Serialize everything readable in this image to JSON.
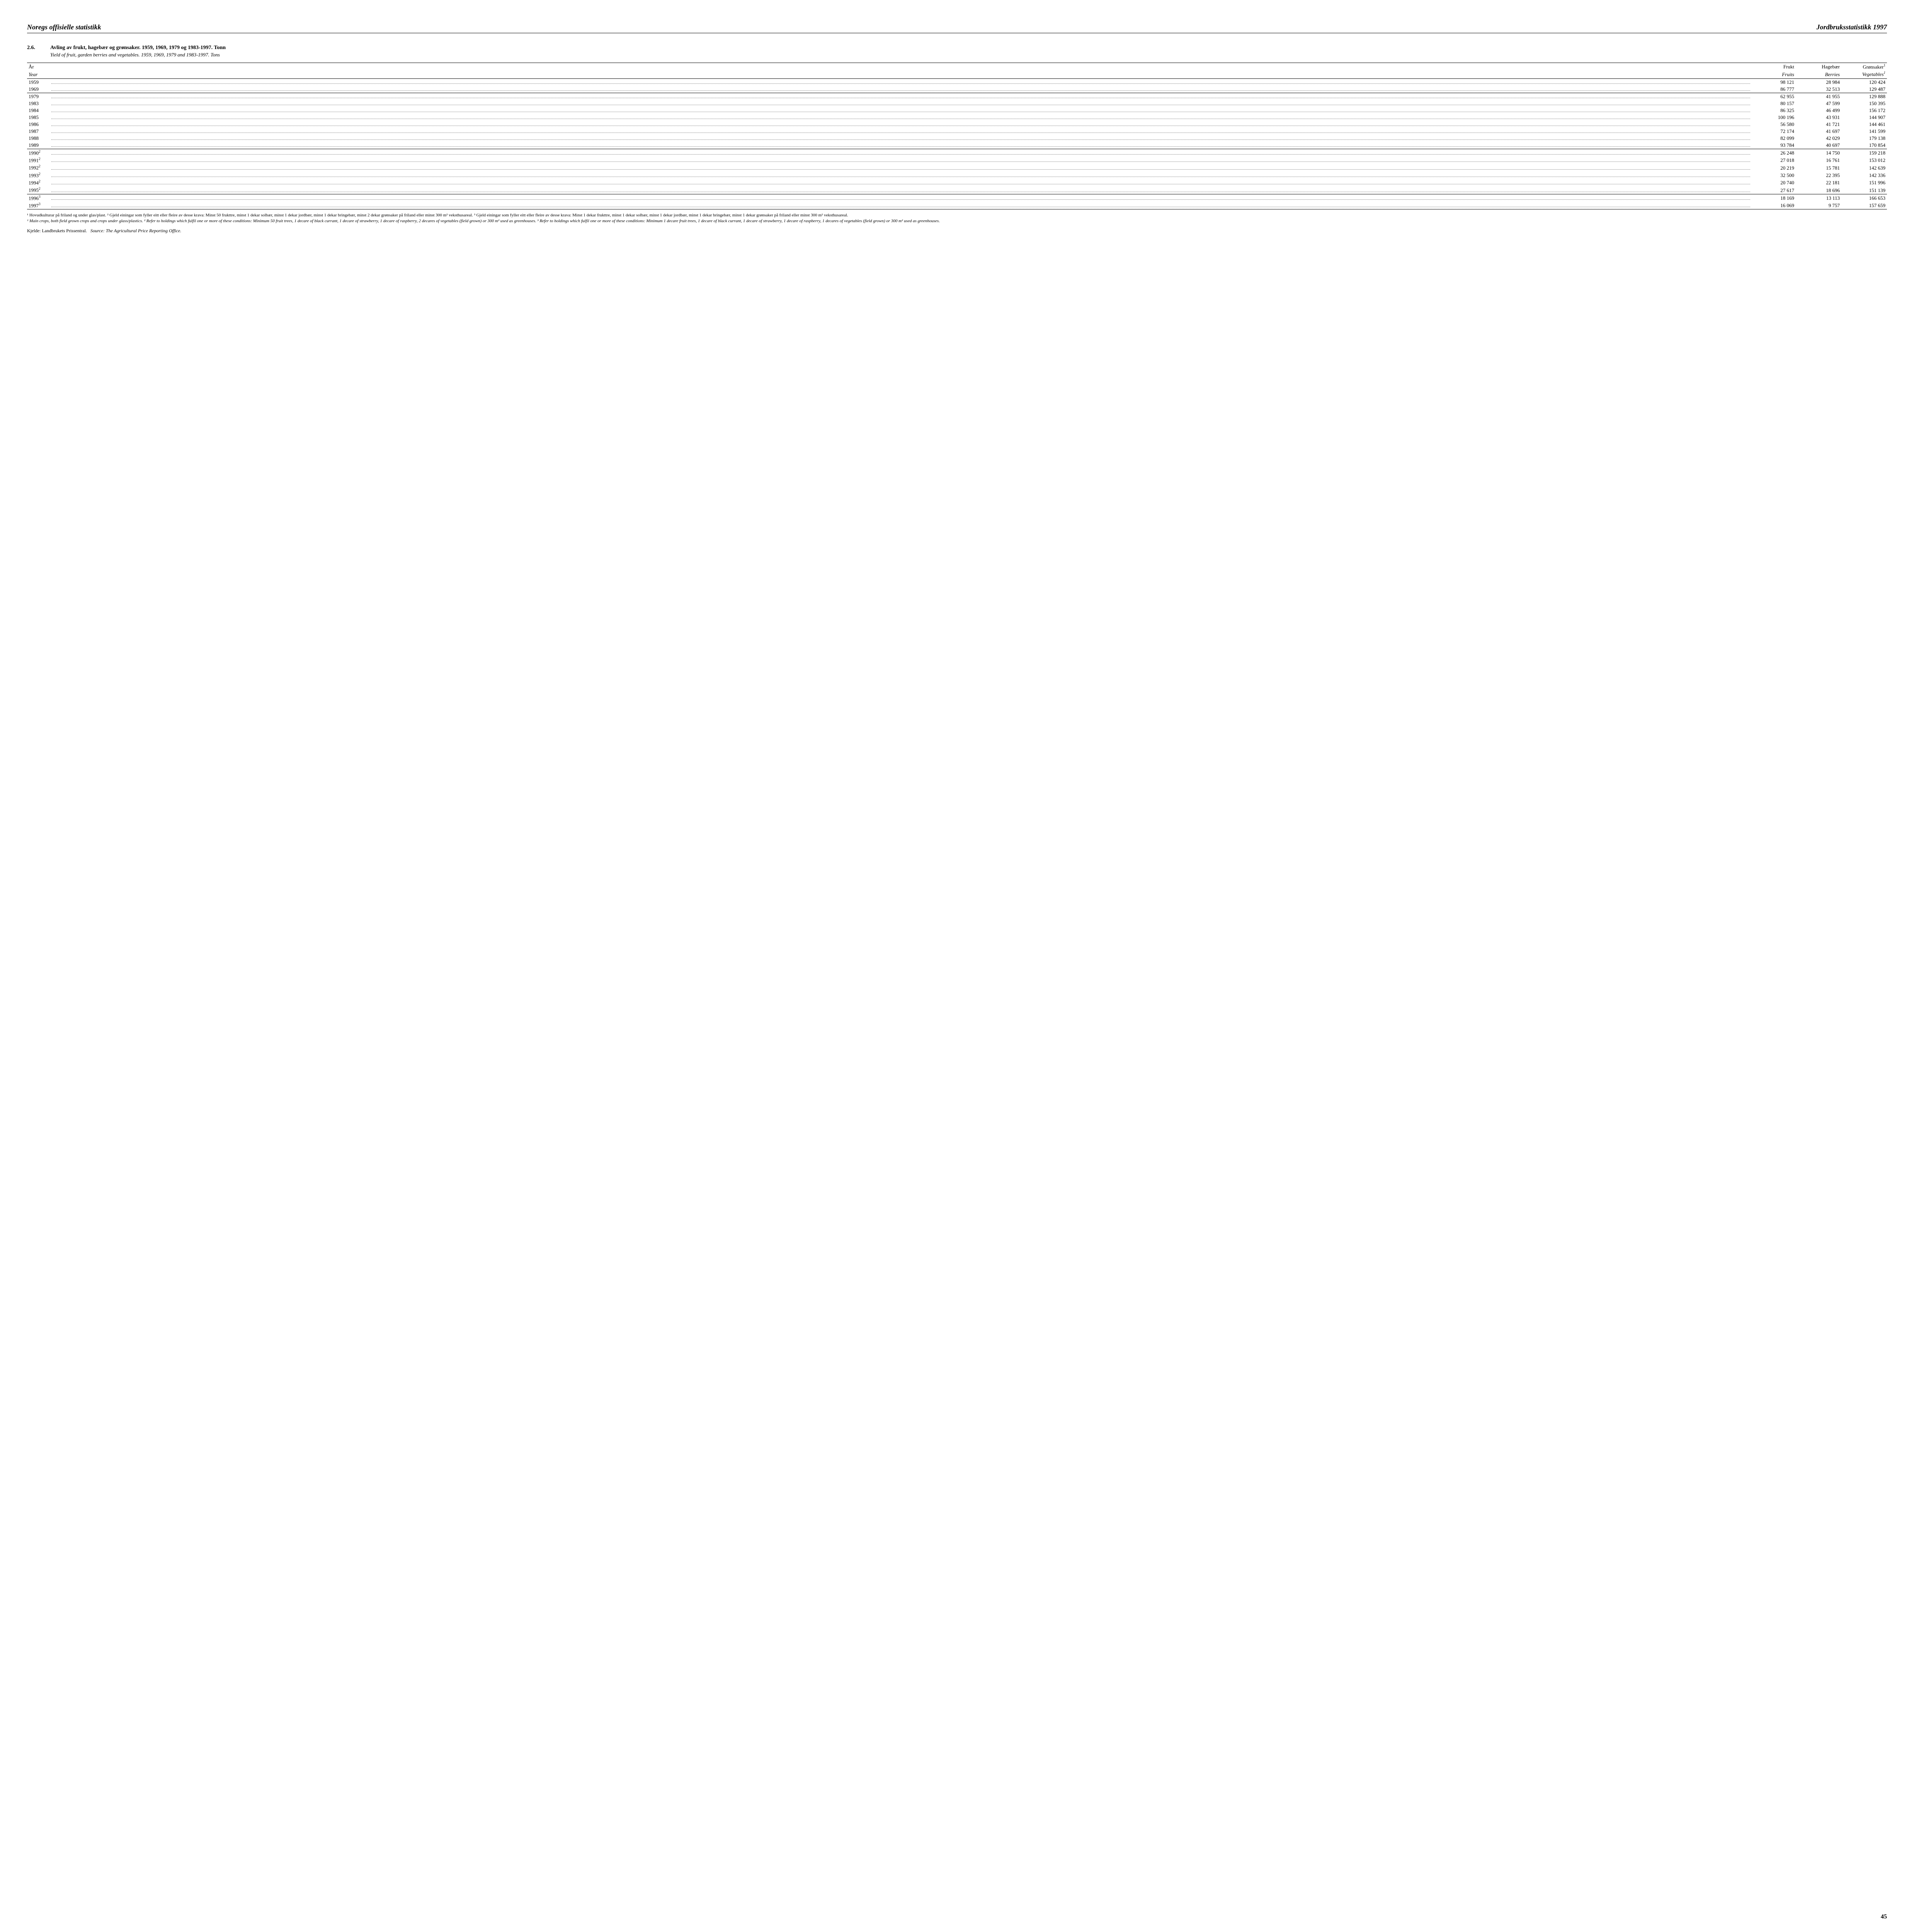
{
  "header": {
    "left": "Noregs offisielle statistikk",
    "right": "Jordbruksstatistikk 1997"
  },
  "section": {
    "number": "2.6.",
    "title": "Avling av frukt, hagebær og grønsaker.  1959, 1969, 1979 og 1983-1997.  Tonn",
    "subtitle": "Yield of fruit, garden berries and vegetables.  1959, 1969, 1979 and 1983-1997.  Tons"
  },
  "columns": {
    "year_no": "År",
    "year_en": "Year",
    "fruit_no": "Frukt",
    "fruit_en": "Fruits",
    "berries_no": "Hagebær",
    "berries_en": "Berries",
    "veg_no": "Grønsaker",
    "veg_en": "Vegetables",
    "veg_sup": "1"
  },
  "rows": [
    {
      "year": "1959",
      "sup": "",
      "fruit": "98 121",
      "berries": "28 984",
      "veg": "120 424",
      "sep": false
    },
    {
      "year": "1969",
      "sup": "",
      "fruit": "86 777",
      "berries": "32 513",
      "veg": "129 487",
      "sep": false
    },
    {
      "year": "1979",
      "sup": "",
      "fruit": "62 955",
      "berries": "41 955",
      "veg": "129 888",
      "sep": true
    },
    {
      "year": "1983",
      "sup": "",
      "fruit": "80 157",
      "berries": "47 599",
      "veg": "150 395",
      "sep": false
    },
    {
      "year": "1984",
      "sup": "",
      "fruit": "86 325",
      "berries": "46 499",
      "veg": "156 172",
      "sep": false
    },
    {
      "year": "1985",
      "sup": "",
      "fruit": "100 196",
      "berries": "43 931",
      "veg": "144 907",
      "sep": false
    },
    {
      "year": "1986",
      "sup": "",
      "fruit": "56 580",
      "berries": "41 721",
      "veg": "144 461",
      "sep": false
    },
    {
      "year": "1987",
      "sup": "",
      "fruit": "72 174",
      "berries": "41 697",
      "veg": "141 599",
      "sep": false
    },
    {
      "year": "1988",
      "sup": "",
      "fruit": "82 099",
      "berries": "42 029",
      "veg": "179 138",
      "sep": false
    },
    {
      "year": "1989",
      "sup": "",
      "fruit": "93 784",
      "berries": "40 697",
      "veg": "170 854",
      "sep": false
    },
    {
      "year": "1990",
      "sup": "2",
      "fruit": "26 248",
      "berries": "14 750",
      "veg": "159 218",
      "sep": true
    },
    {
      "year": "1991",
      "sup": "2",
      "fruit": "27 018",
      "berries": "16 761",
      "veg": "153 012",
      "sep": false
    },
    {
      "year": "1992",
      "sup": "2",
      "fruit": "20 219",
      "berries": "15 781",
      "veg": "142 639",
      "sep": false
    },
    {
      "year": "1993",
      "sup": "2",
      "fruit": "32 500",
      "berries": "22 395",
      "veg": "142 336",
      "sep": false
    },
    {
      "year": "1994",
      "sup": "2",
      "fruit": "20 740",
      "berries": "22 181",
      "veg": "151 996",
      "sep": false
    },
    {
      "year": "1995",
      "sup": "2",
      "fruit": "27 617",
      "berries": "18 696",
      "veg": "151 139",
      "sep": false
    },
    {
      "year": "1996",
      "sup": "3",
      "fruit": "18 169",
      "berries": "13 113",
      "veg": "166 653",
      "sep": true
    },
    {
      "year": "1997",
      "sup": "3",
      "fruit": "16 069",
      "berries": "9 757",
      "veg": "157 659",
      "sep": false
    }
  ],
  "footnotes": {
    "no": "¹ Hovudkulturar på friland og under glas/plast.  ² Gjeld einingar som fyller eitt eller fleire av desse krava: Minst 50 frukttre, minst 1 dekar solbær, minst 1 dekar jordbær, minst 1 dekar bringebær, minst 2 dekar grønsaker på friland eller minst 300 m² veksthusareal.  ³ Gjeld einingar som fyller eitt eller fleire av desse krava: Minst 1 dekar frukttre, minst 1 dekar solbær, minst 1 dekar jordbær, minst 1 dekar bringebær, minst 1 dekar grønsaker på friland eller minst 300 m² veksthusareal.",
    "en": "¹ Main crops, both field grown crops and crops under glass/plastics.  ² Refer to holdings which fulfil one or more of these conditions: Minimum 50 fruit trees, 1 decare of black currant, 1 decare of strawberry, 1 decare of raspberry, 2 decares of vegetables (field grown) or 300 m² used as greenhouses.  ³ Refer to holdings which fulfil one or more of these conditions: Minimum 1 decare fruit trees, 1 decare of black currant, 1 decare of strawberry, 1 decare of raspberry, 1 decares of vegetables (field grown) or 300 m² used as greenhouses."
  },
  "source": {
    "label_no": "Kjelde: Landbrukets Prissentral.",
    "label_en": "Source:  The Agricultural Price Reporting Office."
  },
  "page_number": "45"
}
